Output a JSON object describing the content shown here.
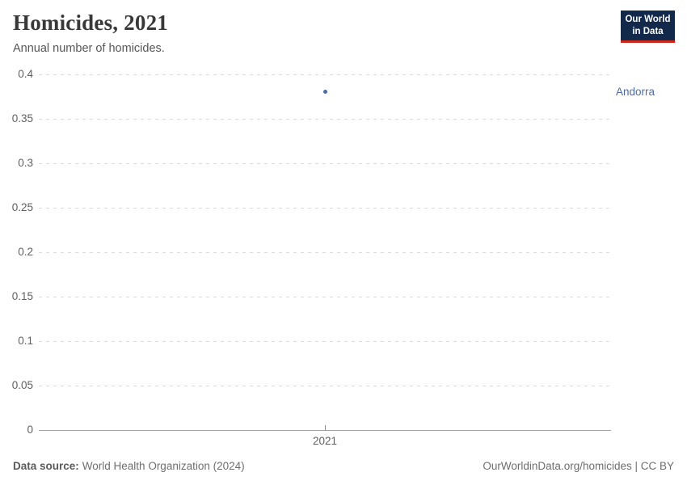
{
  "header": {
    "title": "Homicides, 2021",
    "subtitle": "Annual number of homicides.",
    "logo": {
      "line1": "Our World",
      "line2": "in Data"
    }
  },
  "chart_data": {
    "type": "scatter",
    "title": "Homicides, 2021",
    "subtitle": "Annual number of homicides.",
    "xlabel": "",
    "ylabel": "",
    "ylim": [
      0,
      0.4
    ],
    "yticks": [
      0,
      0.05,
      0.1,
      0.15,
      0.2,
      0.25,
      0.3,
      0.35,
      0.4
    ],
    "xticks": [
      "2021"
    ],
    "grid": "horizontal-dashed",
    "legend_position": "right-of-point",
    "series": [
      {
        "name": "Andorra",
        "x": [
          2021
        ],
        "values": [
          0.38
        ],
        "color": "#4a6bac"
      }
    ]
  },
  "footer": {
    "source_label": "Data source:",
    "source_value": "World Health Organization (2024)",
    "attribution": "OurWorldinData.org/homicides | CC BY"
  },
  "colors": {
    "series_blue": "#4a6bac",
    "logo_navy": "#13294b",
    "logo_red": "#d1281e",
    "gridline": "#dddddd",
    "axis": "#a1a1a1",
    "tick_text": "#606060"
  }
}
